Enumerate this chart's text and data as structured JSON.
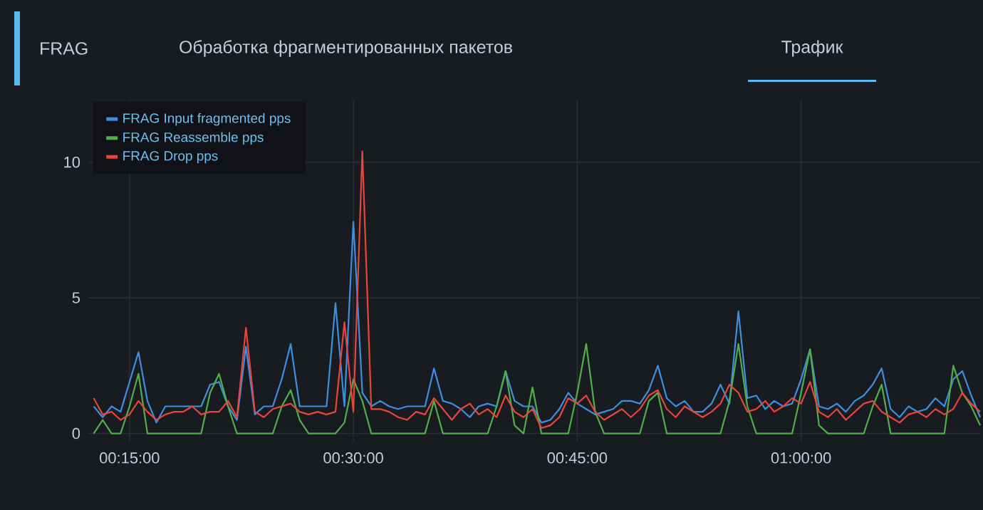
{
  "chart_data": {
    "type": "line",
    "title": "FRAG",
    "subtitle": "Обработка фрагментированных пакетов",
    "annotations": [
      "Трафик"
    ],
    "x": [
      0.21,
      0.22,
      0.23,
      0.24,
      0.25,
      0.26,
      0.27,
      0.28,
      0.29,
      0.3,
      0.31,
      0.32,
      0.33,
      0.34,
      0.35,
      0.36,
      0.37,
      0.38,
      0.39,
      0.4,
      0.41,
      0.42,
      0.43,
      0.44,
      0.45,
      0.46,
      0.47,
      0.48,
      0.49,
      0.5,
      0.51,
      0.52,
      0.53,
      0.54,
      0.55,
      0.56,
      0.57,
      0.58,
      0.59,
      0.6,
      0.61,
      0.62,
      0.63,
      0.64,
      0.65,
      0.66,
      0.67,
      0.68,
      0.69,
      0.7,
      0.71,
      0.72,
      0.73,
      0.74,
      0.75,
      0.76,
      0.77,
      0.78,
      0.79,
      0.8,
      0.81,
      0.82,
      0.83,
      0.84,
      0.85,
      0.86,
      0.87,
      0.88,
      0.89,
      0.9,
      0.91,
      0.92,
      0.93,
      0.94,
      0.95,
      0.96,
      0.97,
      0.98,
      0.99,
      1.0,
      1.01,
      1.02,
      1.03,
      1.04,
      1.05,
      1.06,
      1.07,
      1.08,
      1.09,
      1.1,
      1.11,
      1.12,
      1.13,
      1.14,
      1.15,
      1.16,
      1.17,
      1.18,
      1.19,
      1.2
    ],
    "series": [
      {
        "name": "FRAG Input fragmented pps",
        "color": "#3d8fe0",
        "values": [
          1,
          0.6,
          1,
          0.8,
          1.9,
          3,
          1.2,
          0.4,
          1,
          1,
          1,
          1,
          1,
          1.8,
          1.9,
          1,
          0.5,
          3.2,
          0.7,
          1,
          1,
          2,
          3.3,
          1,
          1,
          1,
          1,
          4.8,
          1,
          7.8,
          1.5,
          1,
          1.2,
          1,
          0.9,
          1,
          1,
          1,
          2.4,
          1.2,
          1.1,
          0.9,
          0.6,
          1,
          1.1,
          1,
          2.3,
          1.2,
          1,
          1,
          0.4,
          0.5,
          0.9,
          1.5,
          1.1,
          0.9,
          0.7,
          0.8,
          0.9,
          1.2,
          1.2,
          1.1,
          1.6,
          2.5,
          1.3,
          1.0,
          1.2,
          0.8,
          0.8,
          1.1,
          1.8,
          1.1,
          4.5,
          1.3,
          1.4,
          0.9,
          1.2,
          1.0,
          1.1,
          2.0,
          3.1,
          1.0,
          0.9,
          1.1,
          0.8,
          1.2,
          1.4,
          1.8,
          2.4,
          0.9,
          0.6,
          1.0,
          0.8,
          0.9,
          1.3,
          1.0,
          2.0,
          2.3,
          1.4,
          0.6
        ]
      },
      {
        "name": "FRAG Reassemble pps",
        "color": "#4fb04a",
        "values": [
          0,
          0.5,
          0,
          0,
          1,
          2.2,
          0,
          0,
          0,
          0,
          0,
          0,
          0,
          1.5,
          2.2,
          1,
          0,
          0,
          0,
          0,
          0,
          1,
          1.6,
          0.5,
          0,
          0,
          0,
          0,
          0.4,
          2,
          1.2,
          0,
          0,
          0,
          0,
          0,
          0,
          0,
          1.2,
          0,
          0,
          0,
          0,
          0,
          0,
          1,
          2.3,
          0.3,
          0,
          1.7,
          0,
          0,
          0,
          0,
          1.5,
          3.3,
          0.8,
          0,
          0,
          0,
          0,
          0,
          1.2,
          1.5,
          0,
          0,
          0,
          0,
          0,
          0,
          0,
          1.2,
          3.3,
          1.0,
          0,
          0,
          0,
          0,
          0,
          1.5,
          3.1,
          0.3,
          0,
          0,
          0,
          0,
          0,
          1,
          1.8,
          0,
          0,
          0,
          0,
          0,
          0,
          0,
          2.5,
          1.5,
          1,
          0.3
        ]
      },
      {
        "name": "FRAG Drop pps",
        "color": "#e8453c",
        "values": [
          1.3,
          0.7,
          0.8,
          0.5,
          0.7,
          1.2,
          0.8,
          0.5,
          0.7,
          0.8,
          0.8,
          1,
          0.7,
          0.8,
          0.8,
          1.2,
          0.6,
          3.9,
          0.8,
          0.6,
          0.9,
          1,
          1.1,
          0.8,
          0.7,
          0.8,
          0.7,
          0.8,
          4.1,
          0.8,
          10.4,
          0.9,
          0.9,
          0.8,
          0.6,
          0.5,
          0.8,
          0.7,
          1.3,
          0.9,
          0.5,
          0.9,
          1.1,
          0.7,
          0.9,
          0.6,
          1.4,
          0.8,
          0.6,
          0.9,
          0.2,
          0.3,
          0.6,
          1.3,
          1.1,
          1.4,
          0.8,
          0.5,
          0.7,
          0.9,
          0.6,
          0.9,
          1.4,
          1.6,
          0.9,
          0.6,
          1.0,
          0.8,
          0.6,
          0.8,
          1.1,
          1.8,
          1.5,
          0.8,
          0.9,
          1.2,
          0.8,
          1.0,
          1.3,
          1.1,
          1.9,
          0.8,
          0.6,
          0.9,
          0.5,
          0.8,
          1.1,
          1.2,
          0.8,
          0.6,
          0.4,
          0.7,
          0.8,
          0.6,
          0.9,
          0.7,
          0.9,
          1.5,
          1.1,
          0.8
        ]
      }
    ],
    "xlim": [
      0.204,
      1.2
    ],
    "xticks": [
      {
        "value": 0.25,
        "label": "00:15:00"
      },
      {
        "value": 0.5,
        "label": "00:30:00"
      },
      {
        "value": 0.75,
        "label": "00:45:00"
      },
      {
        "value": 1.0,
        "label": "01:00:00"
      }
    ],
    "ylim": [
      -0.3,
      12.3
    ],
    "yticks": [
      0,
      5,
      10
    ],
    "grid": true,
    "legend": "top left",
    "marker": "none",
    "line_style": "solid"
  }
}
